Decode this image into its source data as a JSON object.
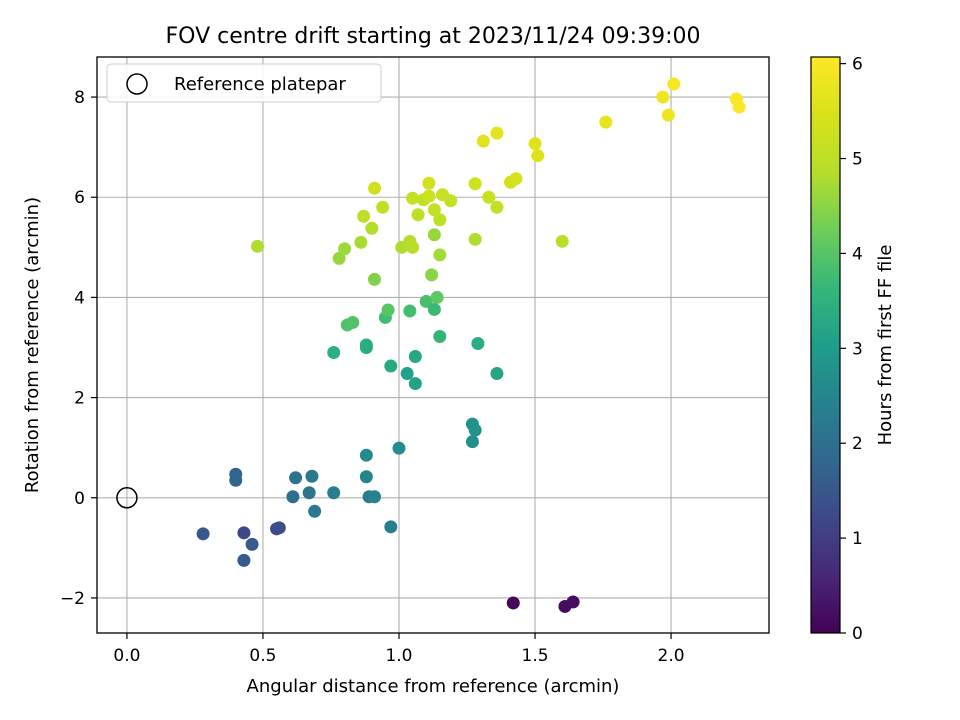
{
  "chart_data": {
    "type": "scatter",
    "title": "FOV centre drift starting at 2023/11/24 09:39:00",
    "xlabel": "Angular distance from reference (arcmin)",
    "ylabel": "Rotation from reference (arcmin)",
    "xlim": [
      -0.11,
      2.36
    ],
    "ylim": [
      -2.7,
      8.8
    ],
    "x_ticks": [
      0.0,
      0.5,
      1.0,
      1.5,
      2.0
    ],
    "x_tick_labels": [
      "0.0",
      "0.5",
      "1.0",
      "1.5",
      "2.0"
    ],
    "y_ticks": [
      -2,
      0,
      2,
      4,
      6,
      8
    ],
    "y_tick_labels": [
      "−2",
      "0",
      "2",
      "4",
      "6",
      "8"
    ],
    "grid": true,
    "legend": {
      "position": "top-left",
      "entries": [
        {
          "label": "Reference platepar",
          "marker": "open-circle"
        }
      ]
    },
    "reference_point": {
      "x": 0.0,
      "y": 0.0,
      "label": "Reference platepar"
    },
    "colorbar": {
      "label": "Hours from first FF file",
      "range": [
        0,
        6.07
      ],
      "ticks": [
        0,
        1,
        2,
        3,
        4,
        5,
        6
      ],
      "tick_labels": [
        "0",
        "1",
        "2",
        "3",
        "4",
        "5",
        "6"
      ],
      "colormap": "viridis"
    },
    "points": [
      {
        "x": 1.42,
        "y": -2.1,
        "c": 0.1
      },
      {
        "x": 1.61,
        "y": -2.17,
        "c": 0.15
      },
      {
        "x": 1.64,
        "y": -2.08,
        "c": 0.2
      },
      {
        "x": 0.28,
        "y": -0.72,
        "c": 1.5
      },
      {
        "x": 0.43,
        "y": -0.7,
        "c": 1.2
      },
      {
        "x": 0.43,
        "y": -1.25,
        "c": 1.55
      },
      {
        "x": 0.46,
        "y": -0.93,
        "c": 1.6
      },
      {
        "x": 0.56,
        "y": -0.6,
        "c": 1.25
      },
      {
        "x": 0.55,
        "y": -0.62,
        "c": 1.3
      },
      {
        "x": 0.4,
        "y": 0.47,
        "c": 1.75
      },
      {
        "x": 0.4,
        "y": 0.35,
        "c": 1.8
      },
      {
        "x": 0.61,
        "y": 0.02,
        "c": 2.0
      },
      {
        "x": 0.62,
        "y": 0.4,
        "c": 2.1
      },
      {
        "x": 0.67,
        "y": 0.1,
        "c": 2.15
      },
      {
        "x": 0.68,
        "y": 0.43,
        "c": 2.2
      },
      {
        "x": 0.69,
        "y": -0.27,
        "c": 2.25
      },
      {
        "x": 0.76,
        "y": 0.1,
        "c": 2.3
      },
      {
        "x": 0.88,
        "y": 0.85,
        "c": 2.6
      },
      {
        "x": 0.88,
        "y": 0.42,
        "c": 2.5
      },
      {
        "x": 0.89,
        "y": 0.02,
        "c": 2.35
      },
      {
        "x": 0.91,
        "y": 0.02,
        "c": 2.4
      },
      {
        "x": 0.97,
        "y": -0.58,
        "c": 2.35
      },
      {
        "x": 1.0,
        "y": 0.99,
        "c": 2.65
      },
      {
        "x": 1.27,
        "y": 1.12,
        "c": 2.7
      },
      {
        "x": 1.27,
        "y": 1.47,
        "c": 2.75
      },
      {
        "x": 1.28,
        "y": 1.35,
        "c": 2.8
      },
      {
        "x": 0.76,
        "y": 2.9,
        "c": 3.45
      },
      {
        "x": 0.88,
        "y": 3.05,
        "c": 3.4
      },
      {
        "x": 0.88,
        "y": 3.0,
        "c": 3.35
      },
      {
        "x": 0.97,
        "y": 2.63,
        "c": 3.3
      },
      {
        "x": 1.03,
        "y": 2.48,
        "c": 3.1
      },
      {
        "x": 1.06,
        "y": 2.28,
        "c": 3.15
      },
      {
        "x": 1.06,
        "y": 2.82,
        "c": 3.25
      },
      {
        "x": 1.29,
        "y": 3.08,
        "c": 3.4
      },
      {
        "x": 1.36,
        "y": 2.48,
        "c": 3.2
      },
      {
        "x": 0.81,
        "y": 3.45,
        "c": 3.9
      },
      {
        "x": 0.83,
        "y": 3.5,
        "c": 3.95
      },
      {
        "x": 0.95,
        "y": 3.6,
        "c": 3.75
      },
      {
        "x": 0.96,
        "y": 3.75,
        "c": 4.0
      },
      {
        "x": 1.04,
        "y": 3.73,
        "c": 3.8
      },
      {
        "x": 1.1,
        "y": 3.92,
        "c": 3.85
      },
      {
        "x": 1.13,
        "y": 3.76,
        "c": 3.7
      },
      {
        "x": 1.14,
        "y": 4.0,
        "c": 4.1
      },
      {
        "x": 1.15,
        "y": 3.22,
        "c": 3.6
      },
      {
        "x": 0.48,
        "y": 5.02,
        "c": 4.8
      },
      {
        "x": 0.78,
        "y": 4.78,
        "c": 4.6
      },
      {
        "x": 0.8,
        "y": 4.97,
        "c": 4.65
      },
      {
        "x": 0.86,
        "y": 5.1,
        "c": 4.75
      },
      {
        "x": 0.9,
        "y": 5.38,
        "c": 4.85
      },
      {
        "x": 0.91,
        "y": 4.36,
        "c": 4.4
      },
      {
        "x": 1.01,
        "y": 5.0,
        "c": 4.8
      },
      {
        "x": 1.04,
        "y": 5.12,
        "c": 4.85
      },
      {
        "x": 1.05,
        "y": 5.0,
        "c": 4.9
      },
      {
        "x": 1.12,
        "y": 4.45,
        "c": 4.5
      },
      {
        "x": 1.13,
        "y": 5.25,
        "c": 4.6
      },
      {
        "x": 1.15,
        "y": 4.85,
        "c": 4.7
      },
      {
        "x": 1.28,
        "y": 5.16,
        "c": 4.8
      },
      {
        "x": 1.6,
        "y": 5.12,
        "c": 4.9
      },
      {
        "x": 0.87,
        "y": 5.62,
        "c": 5.0
      },
      {
        "x": 0.91,
        "y": 6.18,
        "c": 5.3
      },
      {
        "x": 0.94,
        "y": 5.8,
        "c": 5.05
      },
      {
        "x": 1.05,
        "y": 5.98,
        "c": 5.15
      },
      {
        "x": 1.07,
        "y": 5.65,
        "c": 5.0
      },
      {
        "x": 1.09,
        "y": 5.95,
        "c": 5.05
      },
      {
        "x": 1.11,
        "y": 6.28,
        "c": 5.35
      },
      {
        "x": 1.11,
        "y": 6.02,
        "c": 5.25
      },
      {
        "x": 1.13,
        "y": 5.75,
        "c": 5.1
      },
      {
        "x": 1.15,
        "y": 5.55,
        "c": 5.0
      },
      {
        "x": 1.16,
        "y": 6.05,
        "c": 5.2
      },
      {
        "x": 1.19,
        "y": 5.93,
        "c": 5.1
      },
      {
        "x": 1.28,
        "y": 6.27,
        "c": 5.3
      },
      {
        "x": 1.33,
        "y": 6.0,
        "c": 5.2
      },
      {
        "x": 1.36,
        "y": 5.8,
        "c": 5.05
      },
      {
        "x": 1.41,
        "y": 6.3,
        "c": 5.35
      },
      {
        "x": 1.43,
        "y": 6.37,
        "c": 5.4
      },
      {
        "x": 1.31,
        "y": 7.12,
        "c": 5.6
      },
      {
        "x": 1.36,
        "y": 7.28,
        "c": 5.65
      },
      {
        "x": 1.5,
        "y": 7.07,
        "c": 5.6
      },
      {
        "x": 1.51,
        "y": 6.83,
        "c": 5.55
      },
      {
        "x": 1.76,
        "y": 7.5,
        "c": 5.7
      },
      {
        "x": 1.97,
        "y": 8.0,
        "c": 5.85
      },
      {
        "x": 1.99,
        "y": 7.64,
        "c": 5.8
      },
      {
        "x": 2.01,
        "y": 8.26,
        "c": 5.95
      },
      {
        "x": 2.24,
        "y": 7.96,
        "c": 6.0
      },
      {
        "x": 2.25,
        "y": 7.8,
        "c": 6.05
      }
    ]
  }
}
